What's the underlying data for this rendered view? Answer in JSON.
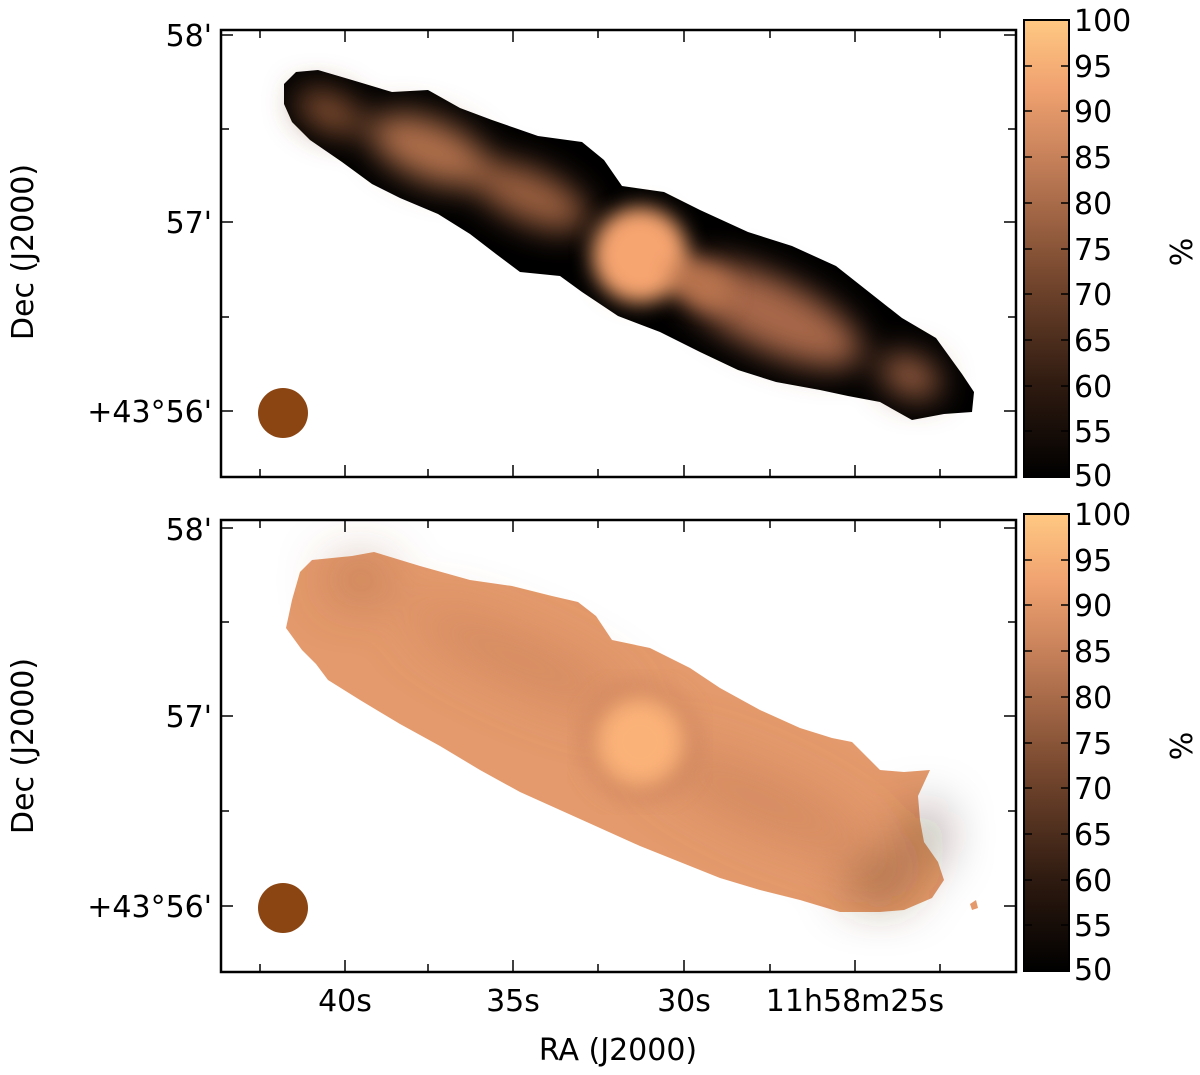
{
  "chart_data": [
    {
      "type": "heatmap",
      "panel": "top",
      "ylabel": "Dec (J2000)",
      "y_ticks": [
        "58'",
        "57'",
        "+43°56'"
      ],
      "x_ticks": [],
      "colorbar": {
        "label": "%",
        "range": [
          50,
          100
        ],
        "ticks": [
          "100",
          "95",
          "90",
          "85",
          "80",
          "75",
          "70",
          "65",
          "60",
          "55",
          "50"
        ],
        "colormap": [
          "#000000",
          "#5a3420",
          "#a9694a",
          "#e89a6a",
          "#ffc882"
        ]
      },
      "beam": {
        "color": "#8b4513"
      },
      "grid": false
    },
    {
      "type": "heatmap",
      "panel": "bottom",
      "xlabel": "RA (J2000)",
      "ylabel": "Dec (J2000)",
      "y_ticks": [
        "58'",
        "57'",
        "+43°56'"
      ],
      "x_ticks": [
        "40s",
        "35s",
        "30s",
        "11h58m25s"
      ],
      "colorbar": {
        "label": "%",
        "range": [
          50,
          100
        ],
        "ticks": [
          "100",
          "95",
          "90",
          "85",
          "80",
          "75",
          "70",
          "65",
          "60",
          "55",
          "50"
        ],
        "colormap": [
          "#000000",
          "#5a3420",
          "#a9694a",
          "#e89a6a",
          "#ffc882"
        ]
      },
      "beam": {
        "color": "#8b4513"
      },
      "grid": false
    }
  ]
}
